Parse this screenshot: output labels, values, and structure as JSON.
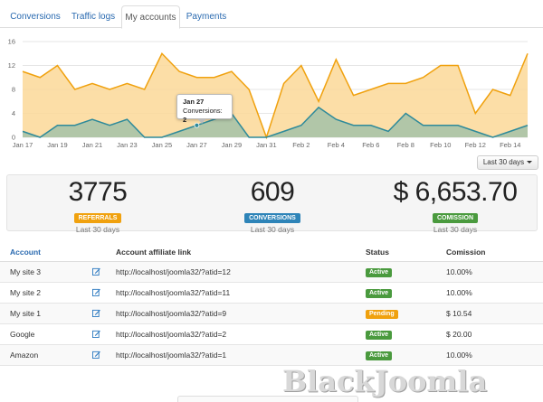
{
  "tabs": [
    {
      "label": "Conversions",
      "active": false
    },
    {
      "label": "Traffic logs",
      "active": false
    },
    {
      "label": "My accounts",
      "active": true
    },
    {
      "label": "Payments",
      "active": false
    }
  ],
  "chart_data": {
    "type": "area",
    "x_tick_labels": [
      "Jan 17",
      "Jan 19",
      "Jan 21",
      "Jan 23",
      "Jan 25",
      "Jan 27",
      "Jan 29",
      "Jan 31",
      "Feb 2",
      "Feb 4",
      "Feb 6",
      "Feb 8",
      "Feb 10",
      "Feb 12",
      "Feb 14"
    ],
    "x": [
      "Jan 17",
      "Jan 18",
      "Jan 19",
      "Jan 20",
      "Jan 21",
      "Jan 22",
      "Jan 23",
      "Jan 24",
      "Jan 25",
      "Jan 26",
      "Jan 27",
      "Jan 28",
      "Jan 29",
      "Jan 30",
      "Jan 31",
      "Feb 1",
      "Feb 2",
      "Feb 3",
      "Feb 4",
      "Feb 5",
      "Feb 6",
      "Feb 7",
      "Feb 8",
      "Feb 9",
      "Feb 10",
      "Feb 11",
      "Feb 12",
      "Feb 13",
      "Feb 14",
      "Feb 15"
    ],
    "y_ticks": [
      0,
      4,
      8,
      12,
      16
    ],
    "ylim": [
      0,
      16
    ],
    "grid": true,
    "series": [
      {
        "values": [
          11,
          10,
          12,
          8,
          9,
          8,
          9,
          8,
          14,
          11,
          10,
          10,
          11,
          8,
          0,
          9,
          12,
          6,
          13,
          7,
          8,
          9,
          9,
          10,
          12,
          12,
          4,
          8,
          7,
          14
        ],
        "color": "#f0a10e",
        "fill": "#fbd898"
      },
      {
        "values": [
          1,
          0,
          2,
          2,
          3,
          2,
          3,
          0,
          0,
          1,
          2,
          3,
          4,
          0,
          0,
          1,
          2,
          5,
          3,
          2,
          2,
          1,
          4,
          2,
          2,
          2,
          1,
          0,
          1,
          2
        ],
        "color": "#2e8a9a",
        "fill": "#a8c3a8"
      }
    ],
    "tooltip": {
      "title": "Jan 27",
      "label": "Conversions:",
      "value": "2"
    }
  },
  "range_button": {
    "label": "Last 30 days"
  },
  "stats": [
    {
      "value": "3775",
      "badge": "REFERRALS",
      "badge_color": "#f0a10e",
      "sub": "Last 30 days"
    },
    {
      "value": "609",
      "badge": "CONVERSIONS",
      "badge_color": "#2e84b8",
      "sub": "Last 30 days"
    },
    {
      "value": "$ 6,653.70",
      "badge": "COMISSION",
      "badge_color": "#4a9a3e",
      "sub": "Last 30 days"
    }
  ],
  "table": {
    "headers": {
      "account": "Account",
      "link": "Account affiliate link",
      "status": "Status",
      "comission": "Comission"
    },
    "rows": [
      {
        "account": "My site 3",
        "link": "http://localhost/joomla32/?atid=12",
        "status": "Active",
        "status_color": "#4a9a3e",
        "comission": "10.00%"
      },
      {
        "account": "My site 2",
        "link": "http://localhost/joomla32/?atid=11",
        "status": "Active",
        "status_color": "#4a9a3e",
        "comission": "10.00%"
      },
      {
        "account": "My site 1",
        "link": "http://localhost/joomla32/?atid=9",
        "status": "Pending",
        "status_color": "#f0a10e",
        "comission": "$ 10.54"
      },
      {
        "account": "Google",
        "link": "http://localhost/joomla32/?atid=2",
        "status": "Active",
        "status_color": "#4a9a3e",
        "comission": "$ 20.00"
      },
      {
        "account": "Amazon",
        "link": "http://localhost/joomla32/?atid=1",
        "status": "Active",
        "status_color": "#4a9a3e",
        "comission": "10.00%"
      }
    ]
  },
  "watermark": "BlackJoomla"
}
